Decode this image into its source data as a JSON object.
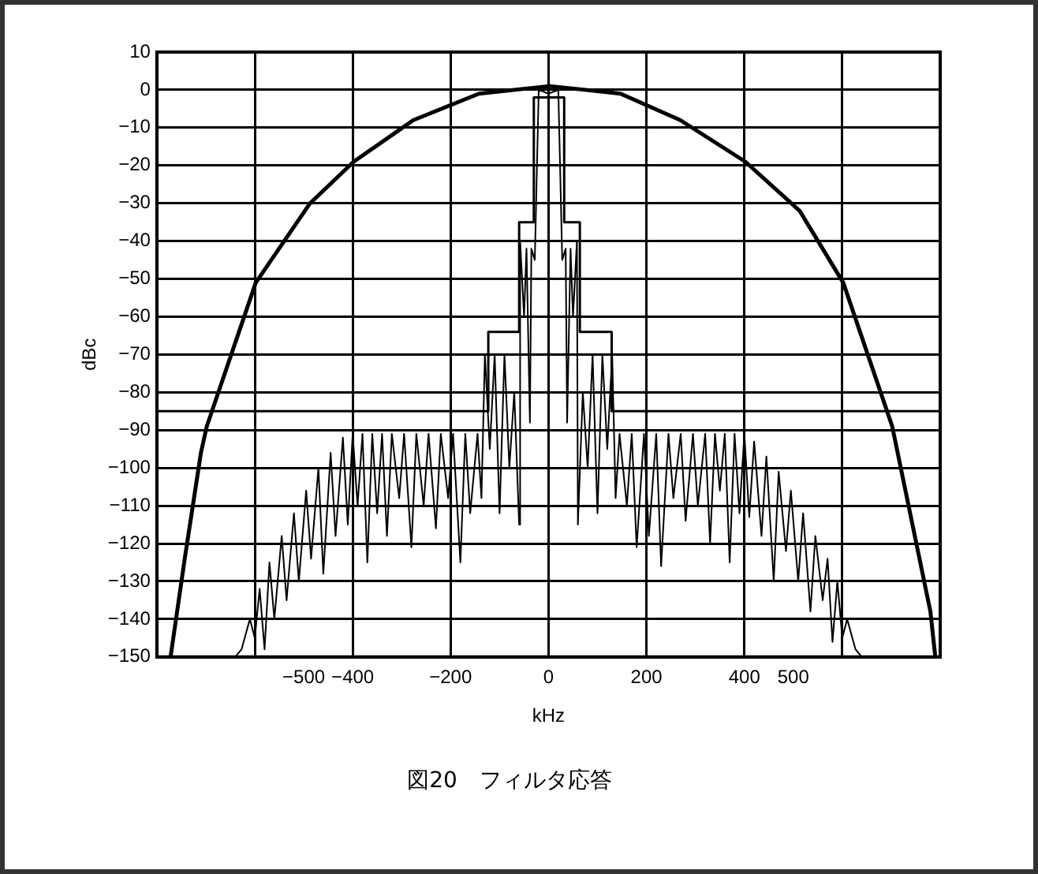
{
  "chart_data": {
    "type": "line",
    "title": "図20　フィルタ応答",
    "xlabel": "kHz",
    "ylabel": "dBc",
    "xlim": [
      -800,
      800
    ],
    "xticks": [
      {
        "value": -800,
        "label": null
      },
      {
        "value": -600,
        "label": null
      },
      {
        "value": -500,
        "label": "−500"
      },
      {
        "value": -400,
        "label": "−400"
      },
      {
        "value": -200,
        "label": "−200"
      },
      {
        "value": 0,
        "label": "0"
      },
      {
        "value": 200,
        "label": "200"
      },
      {
        "value": 400,
        "label": "400"
      },
      {
        "value": 500,
        "label": "500"
      },
      {
        "value": 600,
        "label": null
      },
      {
        "value": 800,
        "label": null
      }
    ],
    "ylim": [
      -150,
      10
    ],
    "yticks": [
      10,
      0,
      {
        "value": -10,
        "label": "−10"
      },
      {
        "value": -20,
        "label": "−20"
      },
      {
        "value": -30,
        "label": "−30"
      },
      {
        "value": -40,
        "label": "−40"
      },
      {
        "value": -50,
        "label": "−50"
      },
      {
        "value": -60,
        "label": "−60"
      },
      {
        "value": -70,
        "label": "−70"
      },
      {
        "value": -80,
        "label": "−80"
      },
      {
        "value": -90,
        "label": "−90"
      },
      {
        "value": -100,
        "label": "−100"
      },
      {
        "value": -110,
        "label": "−110"
      },
      {
        "value": -120,
        "label": "−120"
      },
      {
        "value": -130,
        "label": "−130"
      },
      {
        "value": -140,
        "label": "−140"
      },
      {
        "value": -150,
        "label": "−150"
      }
    ],
    "grid": true,
    "legend": false,
    "marker": "none",
    "line_style": "solid",
    "series": [
      {
        "color": "#000000",
        "x": [
          -772,
          -743,
          -710,
          -698,
          -598,
          -487,
          -398,
          -276,
          -142,
          2,
          147,
          269,
          402,
          513,
          602,
          702,
          780,
          790
        ],
        "values": [
          -150,
          -124,
          -96,
          -89,
          -51,
          -30,
          -19,
          -8,
          -1,
          1,
          -1,
          -8,
          -19,
          -32,
          -51,
          -89,
          -138,
          -150
        ]
      },
      {
        "color": "#000000",
        "x": [
          -800,
          -123,
          -123,
          -60,
          -60,
          -30,
          -30,
          32,
          32,
          64,
          64,
          129,
          129,
          800
        ],
        "values": [
          -85,
          -85,
          -64,
          -64,
          -35,
          -35,
          -2,
          -2,
          -35,
          -35,
          -64,
          -64,
          -85,
          -85
        ]
      },
      {
        "color": "#000000",
        "x": [
          -640,
          -627,
          -610,
          -600,
          -590,
          -580,
          -570,
          -560,
          -545,
          -535,
          -520,
          -510,
          -495,
          -485,
          -470,
          -460,
          -445,
          -435,
          -420,
          -410,
          -400,
          -390,
          -380,
          -370,
          -360,
          -350,
          -340,
          -330,
          -320,
          -305,
          -295,
          -280,
          -270,
          -255,
          -245,
          -230,
          -220,
          -205,
          -195,
          -180,
          -170,
          -160,
          -145,
          -137,
          -130,
          -120,
          -110,
          -100,
          -90,
          -80,
          -70,
          -60,
          -58,
          -50,
          -45,
          -38,
          -35,
          -28,
          -20,
          0,
          20,
          28,
          35,
          38,
          45,
          50,
          58,
          60,
          70,
          80,
          90,
          100,
          110,
          120,
          130,
          137,
          145,
          160,
          170,
          180,
          195,
          205,
          220,
          230,
          245,
          255,
          270,
          280,
          295,
          305,
          320,
          330,
          340,
          350,
          360,
          370,
          380,
          390,
          400,
          410,
          420,
          435,
          445,
          460,
          470,
          485,
          495,
          510,
          520,
          535,
          545,
          560,
          570,
          580,
          590,
          600,
          610,
          627,
          640
        ],
        "values": [
          -150,
          -148,
          -140,
          -145,
          -132,
          -148,
          -125,
          -140,
          -118,
          -135,
          -112,
          -130,
          -106,
          -124,
          -100,
          -128,
          -96,
          -118,
          -92,
          -115,
          -91,
          -110,
          -91,
          -125,
          -91,
          -112,
          -91,
          -118,
          -91,
          -108,
          -91,
          -121,
          -91,
          -110,
          -91,
          -116,
          -91,
          -108,
          -91,
          -125,
          -91,
          -112,
          -91,
          -108,
          -70,
          -95,
          -70,
          -112,
          -70,
          -100,
          -80,
          -115,
          -40,
          -60,
          -42,
          -88,
          -42,
          -45,
          0,
          -1,
          0,
          -45,
          -42,
          -88,
          -42,
          -60,
          -40,
          -115,
          -80,
          -100,
          -70,
          -112,
          -70,
          -95,
          -70,
          -108,
          -91,
          -110,
          -91,
          -121,
          -91,
          -118,
          -91,
          -126,
          -91,
          -108,
          -91,
          -114,
          -91,
          -110,
          -91,
          -120,
          -91,
          -106,
          -91,
          -125,
          -91,
          -112,
          -91,
          -113,
          -93,
          -118,
          -97,
          -130,
          -101,
          -122,
          -106,
          -130,
          -112,
          -138,
          -118,
          -135,
          -124,
          -146,
          -130,
          -145,
          -140,
          -148,
          -150
        ]
      }
    ]
  }
}
